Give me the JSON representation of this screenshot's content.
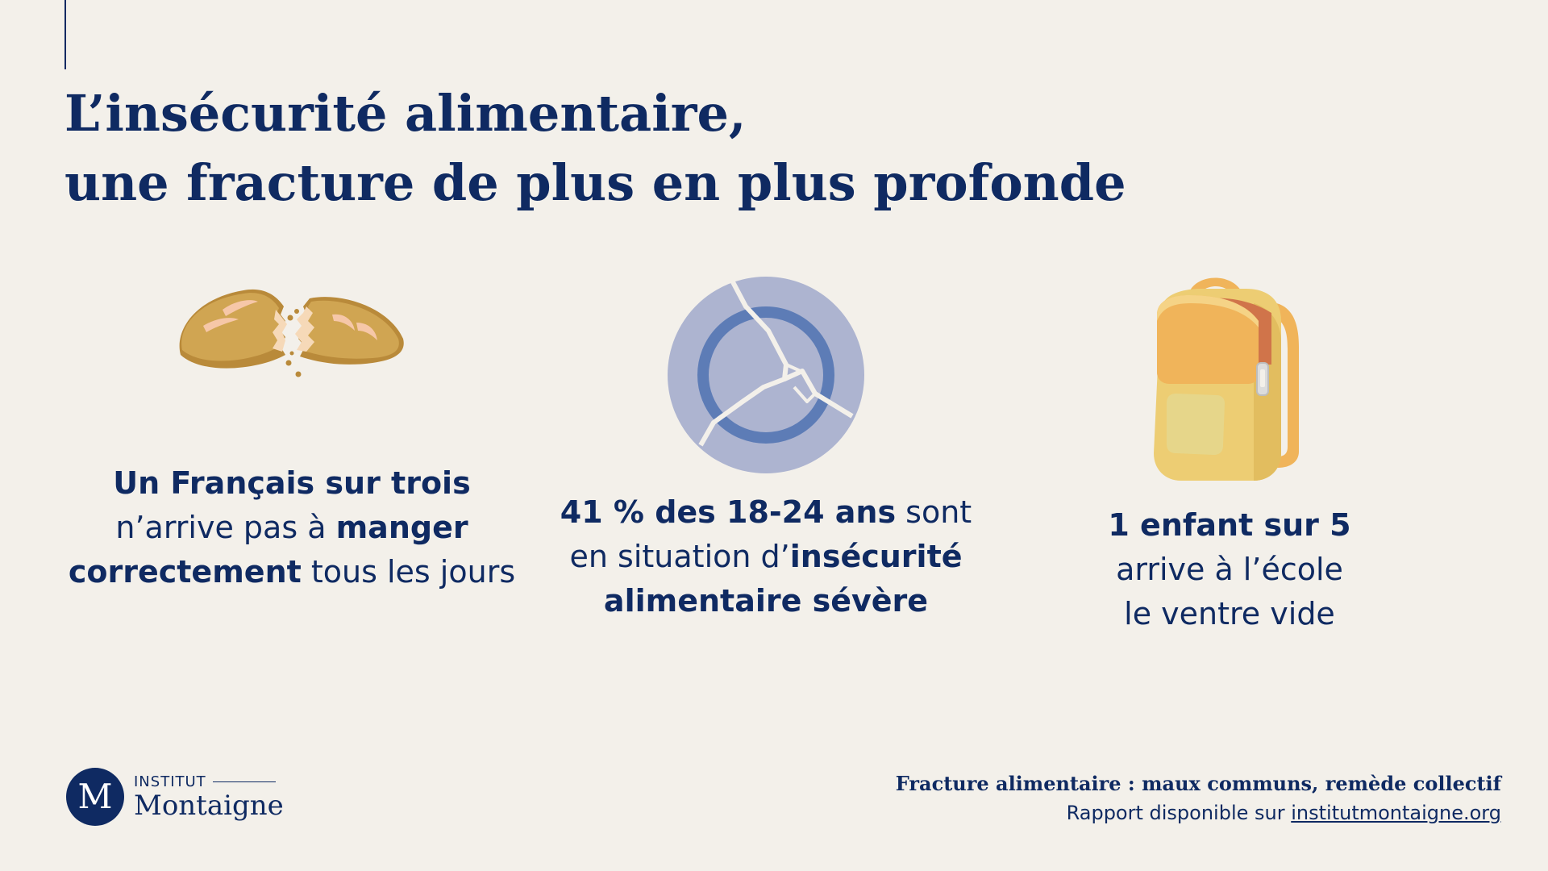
{
  "header": {
    "title_line1": "L’insécurité alimentaire,",
    "title_line2": "une fracture de plus en plus profonde"
  },
  "stats": [
    {
      "icon": "broken-bread-icon",
      "line1_bold": "Un Français sur trois",
      "line2_pre": "n’arrive pas à ",
      "line2_bold": "manger",
      "line3_bold": "correctement",
      "line3_post": " tous les jours"
    },
    {
      "icon": "broken-plate-icon",
      "line1_bold": "41 % des 18-24 ans",
      "line1_post": " sont",
      "line2_pre": "en situation d’",
      "line2_bold": "insécurité",
      "line3_bold": "alimentaire sévère"
    },
    {
      "icon": "backpack-icon",
      "line1_bold": "1 enfant sur 5",
      "line2": "arrive à l’école",
      "line3": "le ventre vide"
    }
  ],
  "logo": {
    "mark": "M",
    "top": "INSTITUT",
    "name": "Montaigne"
  },
  "footer": {
    "title": "Fracture alimentaire : maux communs, remède collectif",
    "sub_prefix": "Rapport disponible sur ",
    "link": "institutmontaigne.org"
  },
  "colors": {
    "navy": "#0f2a62",
    "background": "#f3f0ea",
    "plate": "#adb4d0",
    "plate_ring": "#5d7cb6",
    "bread": "#c99b4a",
    "backpack": "#edcd73",
    "backpack_flap": "#f0b45a"
  }
}
